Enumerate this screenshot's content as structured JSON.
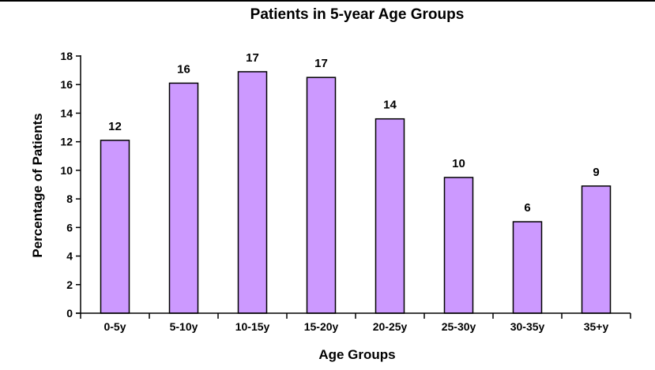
{
  "chart_data": {
    "type": "bar",
    "title": "Patients in 5-year Age Groups",
    "xlabel": "Age Groups",
    "ylabel": "Percentage of Patients",
    "categories": [
      "0-5y",
      "5-10y",
      "10-15y",
      "15-20y",
      "20-25y",
      "25-30y",
      "30-35y",
      "35+y"
    ],
    "values": [
      12.1,
      16.1,
      16.9,
      16.5,
      13.6,
      9.5,
      6.4,
      8.9
    ],
    "data_labels": [
      "12",
      "16",
      "17",
      "17",
      "14",
      "10",
      "6",
      "9"
    ],
    "ylim": [
      0,
      18
    ],
    "yticks": [
      "0",
      "2",
      "4",
      "6",
      "8",
      "10",
      "12",
      "14",
      "16",
      "18"
    ],
    "grid": false,
    "legend": "none",
    "bar_color": "#cc99ff",
    "bar_edge_color": "#000000"
  }
}
